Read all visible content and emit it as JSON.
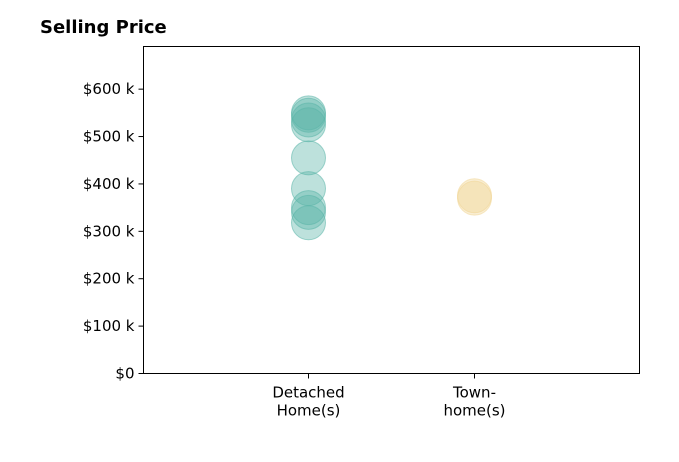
{
  "chart_data": {
    "type": "scatter",
    "title": "Selling Price",
    "xlabel": "",
    "ylabel": "",
    "categories": [
      {
        "label_lines": [
          "Detached",
          "Home(s)"
        ]
      },
      {
        "label_lines": [
          "Town-",
          "home(s)"
        ]
      }
    ],
    "ylim": [
      0,
      690000
    ],
    "yticks": [
      {
        "value": 0,
        "label": "$0"
      },
      {
        "value": 100000,
        "label": "$100 k"
      },
      {
        "value": 200000,
        "label": "$200 k"
      },
      {
        "value": 300000,
        "label": "$300 k"
      },
      {
        "value": 400000,
        "label": "$400 k"
      },
      {
        "value": 500000,
        "label": "$500 k"
      },
      {
        "value": 600000,
        "label": "$600 k"
      }
    ],
    "grid": false,
    "series": [
      {
        "category": 0,
        "color": "#5ab4a8",
        "values": [
          550000,
          545000,
          535000,
          525000,
          455000,
          390000,
          350000,
          340000,
          318000
        ]
      },
      {
        "category": 1,
        "color": "#f0d594",
        "values": [
          375000,
          370000
        ]
      }
    ]
  }
}
